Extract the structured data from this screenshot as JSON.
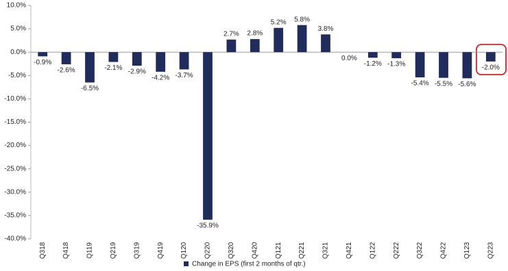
{
  "chart_data": {
    "type": "bar",
    "categories": [
      "Q318",
      "Q418",
      "Q119",
      "Q219",
      "Q319",
      "Q419",
      "Q120",
      "Q220",
      "Q320",
      "Q420",
      "Q121",
      "Q221",
      "Q321",
      "Q421",
      "Q122",
      "Q222",
      "Q322",
      "Q422",
      "Q123",
      "Q223"
    ],
    "series": [
      {
        "name": "Change in EPS (first 2 months of qtr.)",
        "color": "#1f2c5c",
        "values": [
          -0.9,
          -2.6,
          -6.5,
          -2.1,
          -2.9,
          -4.2,
          -3.7,
          -35.9,
          2.7,
          2.8,
          5.2,
          5.8,
          3.8,
          0.0,
          -1.2,
          -1.3,
          -5.4,
          -5.5,
          -5.6,
          -2.0
        ],
        "value_labels": [
          "-0.9%",
          "-2.6%",
          "-6.5%",
          "-2.1%",
          "-2.9%",
          "-4.2%",
          "-3.7%",
          "-35.9%",
          "2.7%",
          "2.8%",
          "5.2%",
          "5.8%",
          "3.8%",
          "0.0%",
          "-1.2%",
          "-1.3%",
          "-5.4%",
          "-5.5%",
          "-5.6%",
          "-2.0%"
        ]
      }
    ],
    "ylim": [
      -40,
      10
    ],
    "yticks": [
      {
        "value": -40,
        "label": "-40.0%"
      },
      {
        "value": -35,
        "label": "-35.0%"
      },
      {
        "value": -30,
        "label": "-30.0%"
      },
      {
        "value": -25,
        "label": "-25.0%"
      },
      {
        "value": -20,
        "label": "-20.0%"
      },
      {
        "value": -15,
        "label": "-15.0%"
      },
      {
        "value": -10,
        "label": "-10.0%"
      },
      {
        "value": -5,
        "label": "-5.0%"
      },
      {
        "value": 0,
        "label": "0.0%"
      },
      {
        "value": 5,
        "label": "5.0%"
      },
      {
        "value": 10,
        "label": "10.0%"
      }
    ],
    "grid": false
  }
}
